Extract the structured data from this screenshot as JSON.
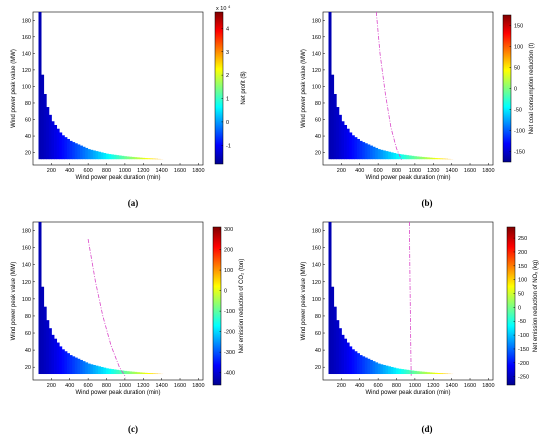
{
  "figure": {
    "panels": [
      {
        "label": "(a)"
      },
      {
        "label": "(b)"
      },
      {
        "label": "(c)"
      },
      {
        "label": "(d)"
      }
    ]
  },
  "colors": {
    "colormap": "jet",
    "boundary_line": "#d946c8",
    "axis": "#000000"
  },
  "chart_data": [
    {
      "type": "heatmap",
      "panel": "(a)",
      "xlabel": "Wind power peak duration (min)",
      "ylabel": "Wind power peak value (MW)",
      "colorbar_label": "Net profit ($)",
      "colorbar_exponent": "x 10",
      "colorbar_exponent_power": "4",
      "xlim": [
        0,
        1850
      ],
      "ylim": [
        5,
        190
      ],
      "xticks": [
        200,
        400,
        600,
        800,
        1000,
        1200,
        1400,
        1600,
        1800
      ],
      "yticks": [
        20,
        40,
        60,
        80,
        100,
        120,
        140,
        160,
        180
      ],
      "clim": [
        -1.8,
        4.7
      ],
      "cbar_ticks": [
        -1,
        0,
        1,
        2,
        3,
        4
      ],
      "region_boundary": {
        "x": [
          60,
          75,
          100,
          150,
          200,
          300,
          400,
          600,
          800,
          1000,
          1200,
          1400,
          1600,
          1750
        ],
        "y": [
          190,
          130,
          100,
          72,
          58,
          42,
          34,
          24,
          18.5,
          15.5,
          13.5,
          12,
          11,
          10
        ]
      },
      "breakeven_line": null
    },
    {
      "type": "heatmap",
      "panel": "(b)",
      "xlabel": "Wind power peak duration (min)",
      "ylabel": "Wind power peak value (MW)",
      "colorbar_label": "Net coal consumption reduction (t)",
      "xlim": [
        0,
        1850
      ],
      "ylim": [
        5,
        190
      ],
      "xticks": [
        200,
        400,
        600,
        800,
        1000,
        1200,
        1400,
        1600,
        1800
      ],
      "yticks": [
        20,
        40,
        60,
        80,
        100,
        120,
        140,
        160,
        180
      ],
      "clim": [
        -175,
        175
      ],
      "cbar_ticks": [
        -150,
        -100,
        -50,
        0,
        50,
        100,
        150
      ],
      "region_boundary": {
        "x": [
          60,
          75,
          100,
          150,
          200,
          300,
          400,
          600,
          800,
          1000,
          1200,
          1400,
          1600,
          1750
        ],
        "y": [
          190,
          130,
          100,
          72,
          58,
          42,
          34,
          24,
          18.5,
          15.5,
          13.5,
          12,
          11,
          10
        ]
      },
      "breakeven_line": {
        "x": [
          580,
          620,
          680,
          740,
          800,
          860
        ],
        "y": [
          190,
          140,
          90,
          50,
          25,
          10
        ]
      }
    },
    {
      "type": "heatmap",
      "panel": "(c)",
      "xlabel": "Wind power peak duration (min)",
      "ylabel": "Wind power peak value (MW)",
      "colorbar_label": "Net emission reduction of CO₂ (ton)",
      "xlim": [
        0,
        1850
      ],
      "ylim": [
        5,
        190
      ],
      "xticks": [
        200,
        400,
        600,
        800,
        1000,
        1200,
        1400,
        1600,
        1800
      ],
      "yticks": [
        20,
        40,
        60,
        80,
        100,
        120,
        140,
        160,
        180
      ],
      "clim": [
        -460,
        310
      ],
      "cbar_ticks": [
        -400,
        -300,
        -200,
        -100,
        0,
        100,
        200,
        300
      ],
      "region_boundary": {
        "x": [
          60,
          75,
          100,
          150,
          200,
          300,
          400,
          600,
          800,
          1000,
          1200,
          1400,
          1600,
          1750
        ],
        "y": [
          190,
          130,
          100,
          72,
          58,
          42,
          34,
          24,
          18.5,
          15.5,
          13.5,
          12,
          11,
          10
        ]
      },
      "breakeven_line": {
        "x": [
          600,
          680,
          760,
          850,
          940,
          1010
        ],
        "y": [
          170,
          120,
          80,
          45,
          20,
          8
        ]
      }
    },
    {
      "type": "heatmap",
      "panel": "(d)",
      "xlabel": "Wind power peak duration (min)",
      "ylabel": "Wind power peak value (MW)",
      "colorbar_label": "Net emission reduction of NOₓ (kg)",
      "xlim": [
        0,
        1850
      ],
      "ylim": [
        5,
        190
      ],
      "xticks": [
        200,
        400,
        600,
        800,
        1000,
        1200,
        1400,
        1600,
        1800
      ],
      "yticks": [
        20,
        40,
        60,
        80,
        100,
        120,
        140,
        160,
        180
      ],
      "clim": [
        -280,
        290
      ],
      "cbar_ticks": [
        -250,
        -200,
        -150,
        -100,
        -50,
        0,
        50,
        100,
        150,
        200,
        250
      ],
      "region_boundary": {
        "x": [
          60,
          75,
          100,
          150,
          200,
          300,
          400,
          600,
          800,
          1000,
          1200,
          1400,
          1600,
          1750
        ],
        "y": [
          190,
          130,
          100,
          72,
          58,
          42,
          34,
          24,
          18.5,
          15.5,
          13.5,
          12,
          11,
          10
        ]
      },
      "breakeven_line": {
        "x": [
          940,
          945,
          950,
          955,
          960
        ],
        "y": [
          190,
          140,
          90,
          40,
          10
        ]
      }
    }
  ]
}
